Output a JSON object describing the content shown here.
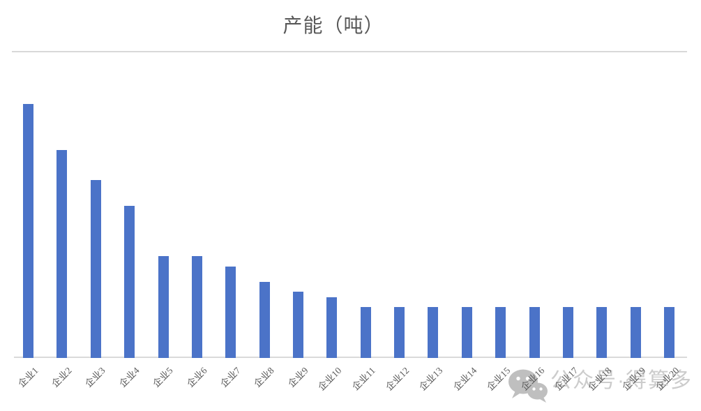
{
  "chart_title": "产能（吨）",
  "watermark": {
    "icon": "wechat-icon",
    "text": "公众号·得算多"
  },
  "colors": {
    "bar": "#4b73c8",
    "title_text": "#595959",
    "axis_label_text": "#595959",
    "title_divider": "#d8d8d8",
    "axis_line": "#dadada",
    "watermark_text": "#cccccc",
    "watermark_icon": "#bfbfbf",
    "background": "#ffffff"
  },
  "chart_data": {
    "type": "bar",
    "title": "产能（吨）",
    "categories": [
      "企业1",
      "企业2",
      "企业3",
      "企业4",
      "企业5",
      "企业6",
      "企业7",
      "企业8",
      "企业9",
      "企业10",
      "企业11",
      "企业12",
      "企业13",
      "企业14",
      "企业15",
      "企业16",
      "企业17",
      "企业18",
      "企业19",
      "企业20"
    ],
    "values": [
      500,
      410,
      350,
      300,
      200,
      200,
      180,
      150,
      130,
      120,
      100,
      100,
      100,
      100,
      100,
      100,
      100,
      100,
      100,
      100
    ],
    "xlabel": "",
    "ylabel": "",
    "ylim": [
      0,
      500
    ],
    "y_axis_visible": false,
    "grid": false,
    "legend": "none",
    "x_tick_rotation": 45,
    "bar_color": "#4b73c8"
  }
}
